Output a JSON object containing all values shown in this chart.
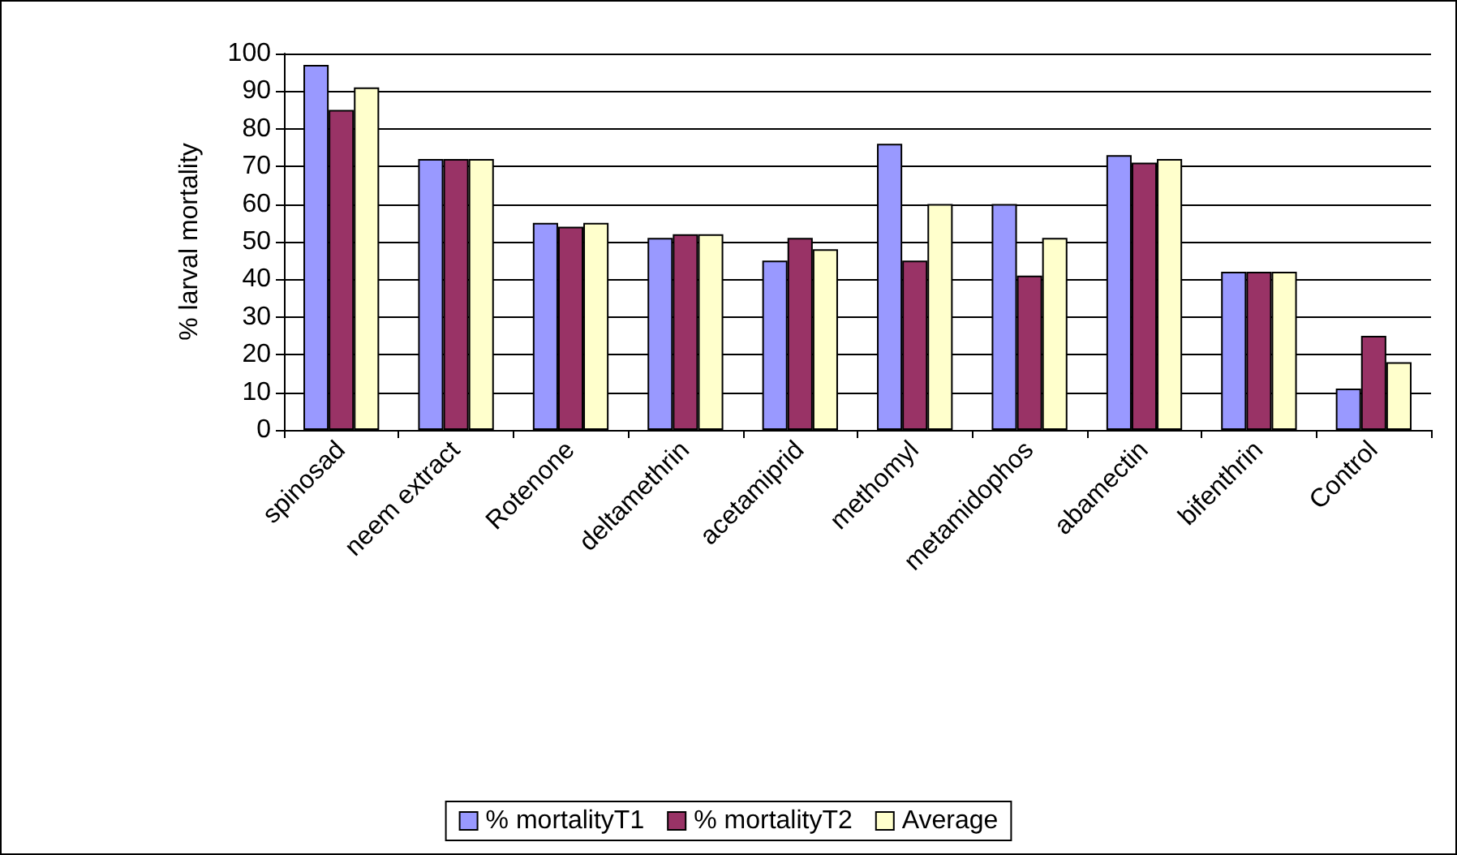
{
  "chart_data": {
    "type": "bar",
    "ylabel": "% larval mortality",
    "categories": [
      "spinosad",
      "neem extract",
      "Rotenone",
      "deltamethrin",
      "acetamiprid",
      "methomyl",
      "metamidophos",
      "abamectin",
      "bifenthrin",
      "Control"
    ],
    "series": [
      {
        "name": "% mortalityT1",
        "color": "#9999ff",
        "values": [
          97,
          72,
          55,
          51,
          45,
          76,
          60,
          73,
          42,
          11
        ]
      },
      {
        "name": "% mortalityT2",
        "color": "#993366",
        "values": [
          85,
          72,
          54,
          52,
          51,
          45,
          41,
          71,
          42,
          25
        ]
      },
      {
        "name": "Average",
        "color": "#ffffcc",
        "values": [
          91,
          72,
          55,
          52,
          48,
          60,
          51,
          72,
          42,
          18
        ]
      }
    ],
    "ylim": [
      0,
      100
    ],
    "yticks": [
      0,
      10,
      20,
      30,
      40,
      50,
      60,
      70,
      80,
      90,
      100
    ],
    "grid": "y",
    "legend": "bottom"
  }
}
